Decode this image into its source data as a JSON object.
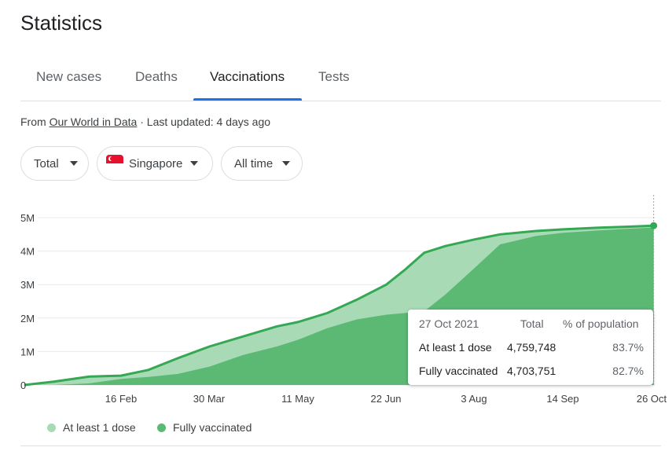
{
  "title": "Statistics",
  "tabs": [
    "New cases",
    "Deaths",
    "Vaccinations",
    "Tests"
  ],
  "active_tab": "Vaccinations",
  "source": {
    "prefix": "From ",
    "link": "Our World in Data",
    "suffix": " · Last updated: 4 days ago"
  },
  "filters": {
    "metric": "Total",
    "country": "Singapore",
    "range": "All time"
  },
  "icons": {
    "caret": "caret-down-icon",
    "flag": "singapore-flag-icon"
  },
  "colors": {
    "accent": "#1a73e8",
    "at_least_one_dose": "#a8dab5",
    "fully_vaccinated": "#5bb974",
    "line": "#34a853"
  },
  "tooltip": {
    "date": "27 Oct 2021",
    "col_total": "Total",
    "col_pct": "% of population",
    "rows": [
      {
        "label": "At least 1 dose",
        "total": "4,759,748",
        "pct": "83.7%"
      },
      {
        "label": "Fully vaccinated",
        "total": "4,703,751",
        "pct": "82.7%"
      }
    ]
  },
  "chart_data": {
    "type": "area",
    "x_ticks": [
      "16 Feb",
      "30 Mar",
      "11 May",
      "22 Jun",
      "3 Aug",
      "14 Sep",
      "26 Oct"
    ],
    "y_ticks": [
      "0",
      "1M",
      "2M",
      "3M",
      "4M",
      "5M"
    ],
    "ylim": [
      0,
      5000000
    ],
    "grid": true,
    "legend": "bottom-left",
    "x": [
      "2021-01-01",
      "2021-01-15",
      "2021-02-01",
      "2021-02-16",
      "2021-03-01",
      "2021-03-15",
      "2021-03-30",
      "2021-04-15",
      "2021-05-01",
      "2021-05-11",
      "2021-05-25",
      "2021-06-08",
      "2021-06-22",
      "2021-07-01",
      "2021-07-10",
      "2021-07-20",
      "2021-08-03",
      "2021-08-15",
      "2021-09-01",
      "2021-09-14",
      "2021-10-01",
      "2021-10-15",
      "2021-10-27"
    ],
    "series": [
      {
        "name": "At least 1 dose",
        "values": [
          0,
          100000,
          250000,
          280000,
          450000,
          800000,
          1150000,
          1450000,
          1750000,
          1880000,
          2150000,
          2550000,
          3000000,
          3450000,
          3950000,
          4150000,
          4350000,
          4500000,
          4600000,
          4650000,
          4700000,
          4730000,
          4759748
        ]
      },
      {
        "name": "Fully vaccinated",
        "values": [
          0,
          0,
          50000,
          180000,
          240000,
          330000,
          550000,
          900000,
          1150000,
          1350000,
          1700000,
          1960000,
          2100000,
          2150000,
          2200000,
          2700000,
          3500000,
          4200000,
          4450000,
          4550000,
          4620000,
          4670000,
          4703751
        ]
      }
    ]
  },
  "legend": [
    {
      "label": "At least 1 dose"
    },
    {
      "label": "Fully vaccinated"
    }
  ]
}
